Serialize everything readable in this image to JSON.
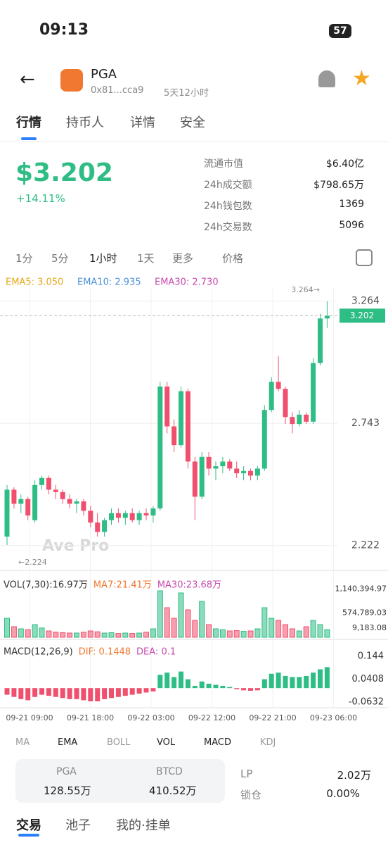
{
  "status": {
    "time": "09:13",
    "battery": "57"
  },
  "header": {
    "symbol": "PGA",
    "address": "0x81...cca9",
    "age": "5天12小时"
  },
  "tabs": [
    "行情",
    "持币人",
    "详情",
    "安全"
  ],
  "price": {
    "value": "$3.202",
    "change": "+14.11%"
  },
  "stats": [
    {
      "label": "流通市值",
      "value": "$6.40亿"
    },
    {
      "label": "24h成交额",
      "value": "$798.65万"
    },
    {
      "label": "24h钱包数",
      "value": "1369"
    },
    {
      "label": "24h交易数",
      "value": "5096"
    }
  ],
  "intervals": [
    "1分",
    "5分",
    "1小时",
    "1天",
    "更多",
    "价格"
  ],
  "chart_data": {
    "type": "candlestick",
    "ema_legend": [
      {
        "text": "EMA5: 3.050",
        "color": "#e6a817"
      },
      {
        "text": "EMA10: 2.935",
        "color": "#4a90d9"
      },
      {
        "text": "EMA30: 2.730",
        "color": "#c84ab0"
      }
    ],
    "up_color": "#2ebd85",
    "down_color": "#f0506e",
    "candles": [
      [
        2.26,
        2.48,
        2.224,
        2.46
      ],
      [
        2.46,
        2.47,
        2.38,
        2.4
      ],
      [
        2.4,
        2.44,
        2.36,
        2.42
      ],
      [
        2.42,
        2.43,
        2.33,
        2.35
      ],
      [
        2.33,
        2.5,
        2.32,
        2.48
      ],
      [
        2.48,
        2.52,
        2.46,
        2.51
      ],
      [
        2.51,
        2.52,
        2.44,
        2.46
      ],
      [
        2.46,
        2.48,
        2.42,
        2.45
      ],
      [
        2.45,
        2.46,
        2.4,
        2.42
      ],
      [
        2.42,
        2.44,
        2.38,
        2.4
      ],
      [
        2.4,
        2.42,
        2.36,
        2.41
      ],
      [
        2.41,
        2.42,
        2.35,
        2.37
      ],
      [
        2.37,
        2.39,
        2.3,
        2.32
      ],
      [
        2.32,
        2.36,
        2.26,
        2.28
      ],
      [
        2.28,
        2.34,
        2.26,
        2.33
      ],
      [
        2.33,
        2.38,
        2.31,
        2.36
      ],
      [
        2.36,
        2.38,
        2.32,
        2.34
      ],
      [
        2.34,
        2.37,
        2.31,
        2.36
      ],
      [
        2.36,
        2.38,
        2.32,
        2.33
      ],
      [
        2.33,
        2.37,
        2.31,
        2.36
      ],
      [
        2.36,
        2.38,
        2.33,
        2.35
      ],
      [
        2.35,
        2.39,
        2.32,
        2.38
      ],
      [
        2.38,
        2.92,
        2.37,
        2.9
      ],
      [
        2.9,
        2.92,
        2.7,
        2.73
      ],
      [
        2.73,
        2.76,
        2.62,
        2.65
      ],
      [
        2.65,
        2.9,
        2.64,
        2.88
      ],
      [
        2.88,
        2.89,
        2.55,
        2.58
      ],
      [
        2.58,
        2.6,
        2.33,
        2.43
      ],
      [
        2.43,
        2.62,
        2.42,
        2.6
      ],
      [
        2.6,
        2.62,
        2.52,
        2.55
      ],
      [
        2.55,
        2.58,
        2.5,
        2.56
      ],
      [
        2.56,
        2.6,
        2.53,
        2.58
      ],
      [
        2.58,
        2.59,
        2.54,
        2.55
      ],
      [
        2.55,
        2.58,
        2.51,
        2.53
      ],
      [
        2.53,
        2.56,
        2.5,
        2.54
      ],
      [
        2.54,
        2.55,
        2.5,
        2.52
      ],
      [
        2.52,
        2.56,
        2.5,
        2.55
      ],
      [
        2.55,
        2.82,
        2.54,
        2.8
      ],
      [
        2.8,
        2.94,
        2.79,
        2.92
      ],
      [
        2.92,
        3.03,
        2.88,
        2.89
      ],
      [
        2.89,
        2.9,
        2.74,
        2.77
      ],
      [
        2.77,
        2.79,
        2.7,
        2.74
      ],
      [
        2.74,
        2.8,
        2.73,
        2.78
      ],
      [
        2.78,
        2.79,
        2.74,
        2.75
      ],
      [
        2.75,
        3.02,
        2.74,
        3.0
      ],
      [
        3.0,
        3.21,
        2.99,
        3.19
      ],
      [
        3.19,
        3.264,
        3.15,
        3.202
      ]
    ],
    "ylim": [
      2.146,
      3.317
    ],
    "yticks": [
      3.264,
      2.743,
      2.222
    ],
    "current_price": 3.202,
    "current_label": "3.202",
    "high_label": "3.264→",
    "low_label": "←2.224",
    "watermark": "Ave Pro",
    "volume": {
      "legend": [
        {
          "text": "VOL(7,30):16.97万",
          "color": "#333333"
        },
        {
          "text": "MA7:21.41万",
          "color": "#f07830"
        },
        {
          "text": "MA30:23.68万",
          "color": "#c84ab0"
        }
      ],
      "values": [
        450000,
        250000,
        200000,
        180000,
        300000,
        220000,
        150000,
        120000,
        110000,
        100000,
        100000,
        120000,
        150000,
        130000,
        100000,
        110000,
        90000,
        100000,
        90000,
        100000,
        120000,
        200000,
        1100000,
        700000,
        450000,
        1050000,
        650000,
        400000,
        850000,
        300000,
        200000,
        180000,
        150000,
        160000,
        140000,
        150000,
        200000,
        700000,
        450000,
        400000,
        300000,
        200000,
        150000,
        250000,
        400000,
        300000,
        180000
      ],
      "ylim": [
        0,
        1250000
      ],
      "yticks": [
        {
          "value": 1140394.97,
          "label": "1,140,394.97"
        },
        {
          "value": 574789.03,
          "label": "574,789.03"
        },
        {
          "value": 9183.08,
          "label": "9,183.08"
        }
      ]
    },
    "macd": {
      "legend": [
        {
          "text": "MACD(12,26,9)",
          "color": "#333333"
        },
        {
          "text": "DIF: 0.1448",
          "color": "#f07830"
        },
        {
          "text": "DEA: 0.1",
          "color": "#c84ab0"
        }
      ],
      "values": [
        -0.03,
        -0.04,
        -0.05,
        -0.055,
        -0.04,
        -0.03,
        -0.035,
        -0.04,
        -0.045,
        -0.05,
        -0.05,
        -0.055,
        -0.06,
        -0.06,
        -0.05,
        -0.045,
        -0.04,
        -0.035,
        -0.03,
        -0.025,
        -0.02,
        -0.015,
        0.06,
        0.07,
        0.05,
        0.075,
        0.04,
        0.01,
        0.03,
        0.02,
        0.015,
        0.01,
        0.005,
        -0.005,
        -0.01,
        -0.012,
        -0.01,
        0.04,
        0.065,
        0.07,
        0.055,
        0.05,
        0.05,
        0.055,
        0.07,
        0.085,
        0.095
      ],
      "ylim": [
        -0.0887,
        0.1823
      ],
      "yticks": [
        0.144,
        0.0408,
        -0.0632
      ]
    },
    "x_labels": [
      "09-21 09:00",
      "09-21 18:00",
      "09-22 03:00",
      "09-22 12:00",
      "09-22 21:00",
      "09-23 06:00"
    ]
  },
  "indicators": [
    "MA",
    "EMA",
    "BOLL",
    "VOL",
    "MACD",
    "KDJ"
  ],
  "pool": {
    "pga_label": "PGA",
    "pga_value": "128.55万",
    "btcd_label": "BTCD",
    "btcd_value": "410.52万",
    "lp_label": "LP",
    "lp_value": "2.02万",
    "lock_label": "锁仓",
    "lock_value": "0.00%"
  },
  "bottom_tabs": [
    "交易",
    "池子",
    "我的·挂单"
  ]
}
